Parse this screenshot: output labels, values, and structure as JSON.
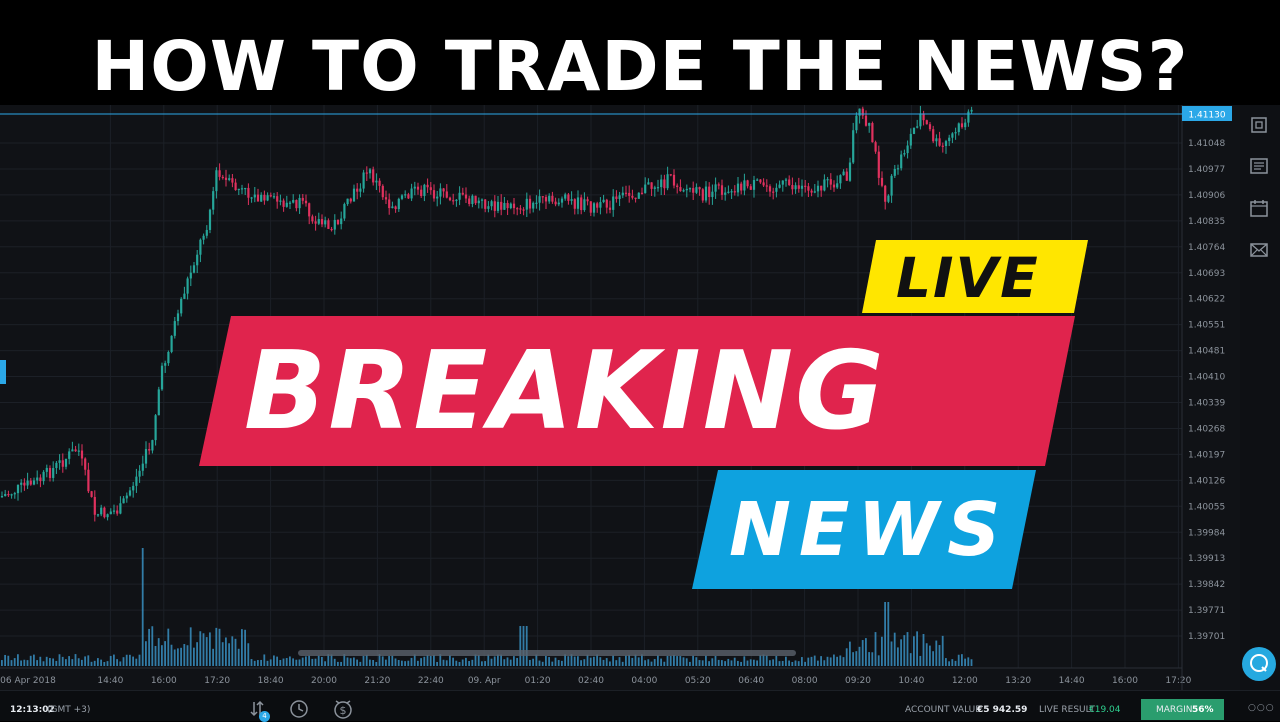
{
  "title": "HOW TO TRADE THE NEWS?",
  "chart": {
    "current_price": "1.41130",
    "price_ticks": [
      "1.41048",
      "1.40977",
      "1.40906",
      "1.40835",
      "1.40764",
      "1.40693",
      "1.40622",
      "1.40551",
      "1.40481",
      "1.40410",
      "1.40339",
      "1.40268",
      "1.40197",
      "1.40126",
      "1.40055",
      "1.39984",
      "1.39913",
      "1.39842",
      "1.39771",
      "1.39701"
    ],
    "time_ticks": [
      "06 Apr 2018",
      "14:40",
      "16:00",
      "17:20",
      "18:40",
      "20:00",
      "21:20",
      "22:40",
      "09. Apr",
      "01:20",
      "02:40",
      "04:00",
      "05:20",
      "06:40",
      "08:00",
      "09:20",
      "10:40",
      "12:00",
      "13:20",
      "14:40",
      "16:00",
      "17:20"
    ],
    "colors": {
      "up": "#26a69a",
      "down": "#e0315e",
      "grid": "#1c2027",
      "volume": "#3ea0d8",
      "price_line": "#2ba8e8"
    }
  },
  "banner": {
    "live": "LIVE",
    "breaking": "BREAKING",
    "news": "NEWS",
    "colors": {
      "live_bg": "#ffe600",
      "breaking_bg": "#e0244d",
      "news_bg": "#0ea2df"
    }
  },
  "toolbar": {
    "icons": [
      "screenshot-icon",
      "news-icon",
      "calendar-icon",
      "mail-icon"
    ]
  },
  "bottom_bar": {
    "clock": "12:13:02",
    "timezone": "(GMT +3)",
    "orders_badge": "4",
    "account_label": "ACCOUNT VALUE",
    "account_value": "€5 942.59",
    "live_result_label": "LIVE RESULT",
    "live_result_value": "€19.04",
    "margin_label": "MARGIN",
    "margin_value": "56%",
    "more": "○○○"
  }
}
